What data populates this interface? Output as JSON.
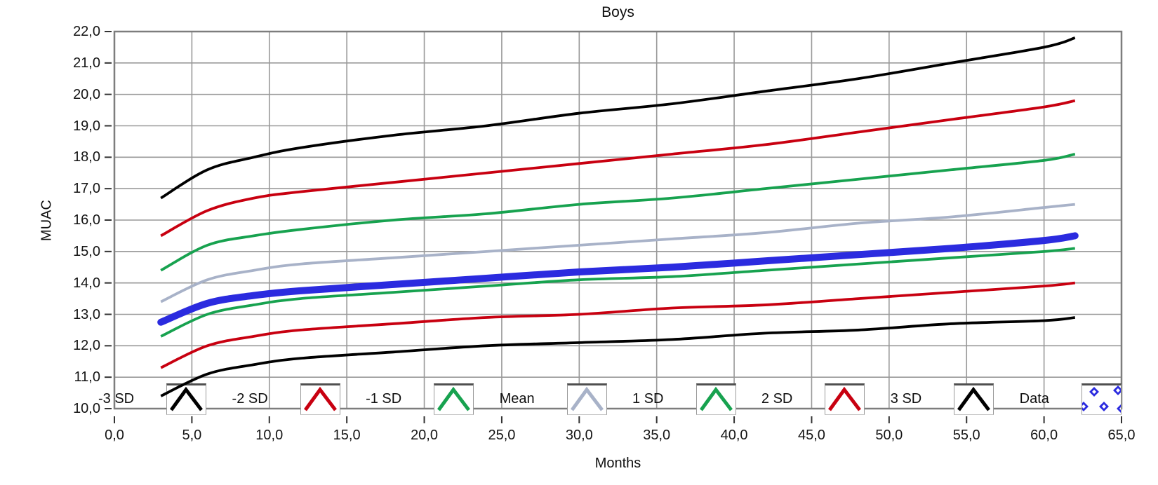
{
  "title": "Boys",
  "x_axis": {
    "label": "Months",
    "min": 0,
    "max": 65,
    "tick_step": 5,
    "tick_labels": [
      "0,0",
      "5,0",
      "10,0",
      "15,0",
      "20,0",
      "25,0",
      "30,0",
      "35,0",
      "40,0",
      "45,0",
      "50,0",
      "55,0",
      "60,0",
      "65,0"
    ]
  },
  "y_axis": {
    "label": "MUAC",
    "min": 10,
    "max": 22,
    "tick_step": 1,
    "tick_labels": [
      "22,0",
      "21,0",
      "20,0",
      "19,0",
      "18,0",
      "17,0",
      "16,0",
      "15,0",
      "14,0",
      "13,0",
      "12,0",
      "11,0",
      "10,0"
    ]
  },
  "colors": {
    "sd3": "#000000",
    "sd2": "#c80010",
    "sd1": "#17a24f",
    "mean": "#a8b2c8",
    "data": "#2b2bdf",
    "grid": "#999999",
    "plot_border": "#7d7d7d",
    "tick": "#333333"
  },
  "legend": {
    "entries": [
      {
        "label": "-3 SD",
        "glyph": "caret-icon",
        "color": "#000000"
      },
      {
        "label": "-2 SD",
        "glyph": "caret-icon",
        "color": "#c80010"
      },
      {
        "label": "-1 SD",
        "glyph": "caret-icon",
        "color": "#17a24f"
      },
      {
        "label": "Mean",
        "glyph": "caret-icon",
        "color": "#a8b2c8"
      },
      {
        "label": "1 SD",
        "glyph": "caret-icon",
        "color": "#17a24f"
      },
      {
        "label": "2 SD",
        "glyph": "caret-icon",
        "color": "#c80010"
      },
      {
        "label": "3 SD",
        "glyph": "caret-icon",
        "color": "#000000"
      },
      {
        "label": "Data",
        "glyph": "scatter-diamonds-icon",
        "color": "#2b2bdf"
      }
    ]
  },
  "chart_data": {
    "type": "line",
    "title": "Boys",
    "xlabel": "Months",
    "ylabel": "MUAC",
    "xlim": [
      0,
      65
    ],
    "ylim": [
      10,
      22
    ],
    "grid": true,
    "legend_position": "bottom-inside",
    "x": [
      3,
      6,
      9,
      12,
      18,
      24,
      30,
      36,
      42,
      48,
      54,
      60,
      62
    ],
    "series": [
      {
        "name": "3 SD",
        "color": "#000000",
        "width": 3.8,
        "values": [
          16.7,
          17.6,
          18.0,
          18.3,
          18.7,
          19.0,
          19.4,
          19.7,
          20.1,
          20.5,
          21.0,
          21.5,
          21.8
        ]
      },
      {
        "name": "2 SD",
        "color": "#c80010",
        "width": 3.8,
        "values": [
          15.5,
          16.3,
          16.7,
          16.9,
          17.2,
          17.5,
          17.8,
          18.1,
          18.4,
          18.8,
          19.2,
          19.6,
          19.8
        ]
      },
      {
        "name": "1 SD",
        "color": "#17a24f",
        "width": 3.8,
        "values": [
          14.4,
          15.2,
          15.5,
          15.7,
          16.0,
          16.2,
          16.5,
          16.7,
          17.0,
          17.3,
          17.6,
          17.9,
          18.1
        ]
      },
      {
        "name": "Mean",
        "color": "#a8b2c8",
        "width": 3.8,
        "values": [
          13.4,
          14.1,
          14.4,
          14.6,
          14.8,
          15.0,
          15.2,
          15.4,
          15.6,
          15.9,
          16.1,
          16.4,
          16.5
        ]
      },
      {
        "name": "-1 SD",
        "color": "#17a24f",
        "width": 3.8,
        "values": [
          12.3,
          13.0,
          13.3,
          13.5,
          13.7,
          13.9,
          14.1,
          14.2,
          14.4,
          14.6,
          14.8,
          15.0,
          15.1
        ]
      },
      {
        "name": "-2 SD",
        "color": "#c80010",
        "width": 3.8,
        "values": [
          11.3,
          12.0,
          12.3,
          12.5,
          12.7,
          12.9,
          13.0,
          13.2,
          13.3,
          13.5,
          13.7,
          13.9,
          14.0
        ]
      },
      {
        "name": "-3 SD",
        "color": "#000000",
        "width": 3.8,
        "values": [
          10.4,
          11.1,
          11.4,
          11.6,
          11.8,
          12.0,
          12.1,
          12.2,
          12.4,
          12.5,
          12.7,
          12.8,
          12.9
        ]
      },
      {
        "name": "Data",
        "color": "#2b2bdf",
        "width": 10,
        "values": [
          12.75,
          13.35,
          13.6,
          13.75,
          13.95,
          14.15,
          14.35,
          14.5,
          14.7,
          14.9,
          15.1,
          15.35,
          15.5
        ]
      }
    ]
  }
}
